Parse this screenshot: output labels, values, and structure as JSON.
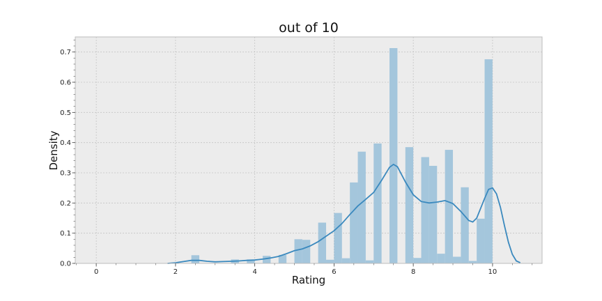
{
  "chart_data": {
    "type": "bar",
    "title": "out of 10",
    "xlabel": "Rating",
    "ylabel": "Density",
    "xlim": [
      -0.53,
      11.25
    ],
    "ylim": [
      0,
      0.75
    ],
    "x_ticks": [
      0,
      2,
      4,
      6,
      8,
      10
    ],
    "y_ticks": [
      0.0,
      0.1,
      0.2,
      0.3,
      0.4,
      0.5,
      0.6,
      0.7
    ],
    "x_minor_step": 0.5,
    "y_minor_step": 0.02,
    "grid": true,
    "background_color": "#ececec",
    "bar_color": "#a4c6dc",
    "line_color": "#3a89be",
    "bin_width": 0.2,
    "histogram": {
      "bin_left_edges": [
        2.4,
        3.4,
        3.8,
        4.2,
        4.6,
        5.0,
        5.2,
        5.6,
        5.8,
        6.0,
        6.2,
        6.4,
        6.6,
        6.8,
        7.0,
        7.4,
        7.8,
        8.0,
        8.2,
        8.4,
        8.6,
        8.8,
        9.0,
        9.2,
        9.4,
        9.6,
        9.8
      ],
      "densities": [
        0.027,
        0.013,
        0.013,
        0.025,
        0.028,
        0.08,
        0.078,
        0.135,
        0.012,
        0.167,
        0.017,
        0.268,
        0.37,
        0.01,
        0.397,
        0.713,
        0.385,
        0.018,
        0.352,
        0.323,
        0.032,
        0.376,
        0.022,
        0.252,
        0.008,
        0.148,
        0.676
      ]
    },
    "kde": {
      "x": [
        1.8,
        2.0,
        2.2,
        2.4,
        2.6,
        2.8,
        3.0,
        3.2,
        3.4,
        3.6,
        3.8,
        4.0,
        4.2,
        4.4,
        4.6,
        4.8,
        5.0,
        5.2,
        5.4,
        5.6,
        5.8,
        6.0,
        6.2,
        6.4,
        6.6,
        6.8,
        7.0,
        7.2,
        7.4,
        7.5,
        7.6,
        7.8,
        8.0,
        8.2,
        8.4,
        8.6,
        8.8,
        9.0,
        9.2,
        9.4,
        9.5,
        9.6,
        9.8,
        9.9,
        10.0,
        10.1,
        10.2,
        10.3,
        10.4,
        10.5,
        10.6,
        10.7
      ],
      "y": [
        0.0,
        0.002,
        0.006,
        0.01,
        0.01,
        0.007,
        0.005,
        0.006,
        0.007,
        0.008,
        0.01,
        0.011,
        0.014,
        0.018,
        0.023,
        0.032,
        0.042,
        0.048,
        0.058,
        0.072,
        0.09,
        0.108,
        0.132,
        0.162,
        0.19,
        0.212,
        0.235,
        0.275,
        0.318,
        0.328,
        0.32,
        0.27,
        0.227,
        0.205,
        0.2,
        0.203,
        0.208,
        0.198,
        0.172,
        0.142,
        0.137,
        0.15,
        0.215,
        0.245,
        0.25,
        0.23,
        0.185,
        0.125,
        0.07,
        0.03,
        0.008,
        0.002
      ]
    }
  }
}
